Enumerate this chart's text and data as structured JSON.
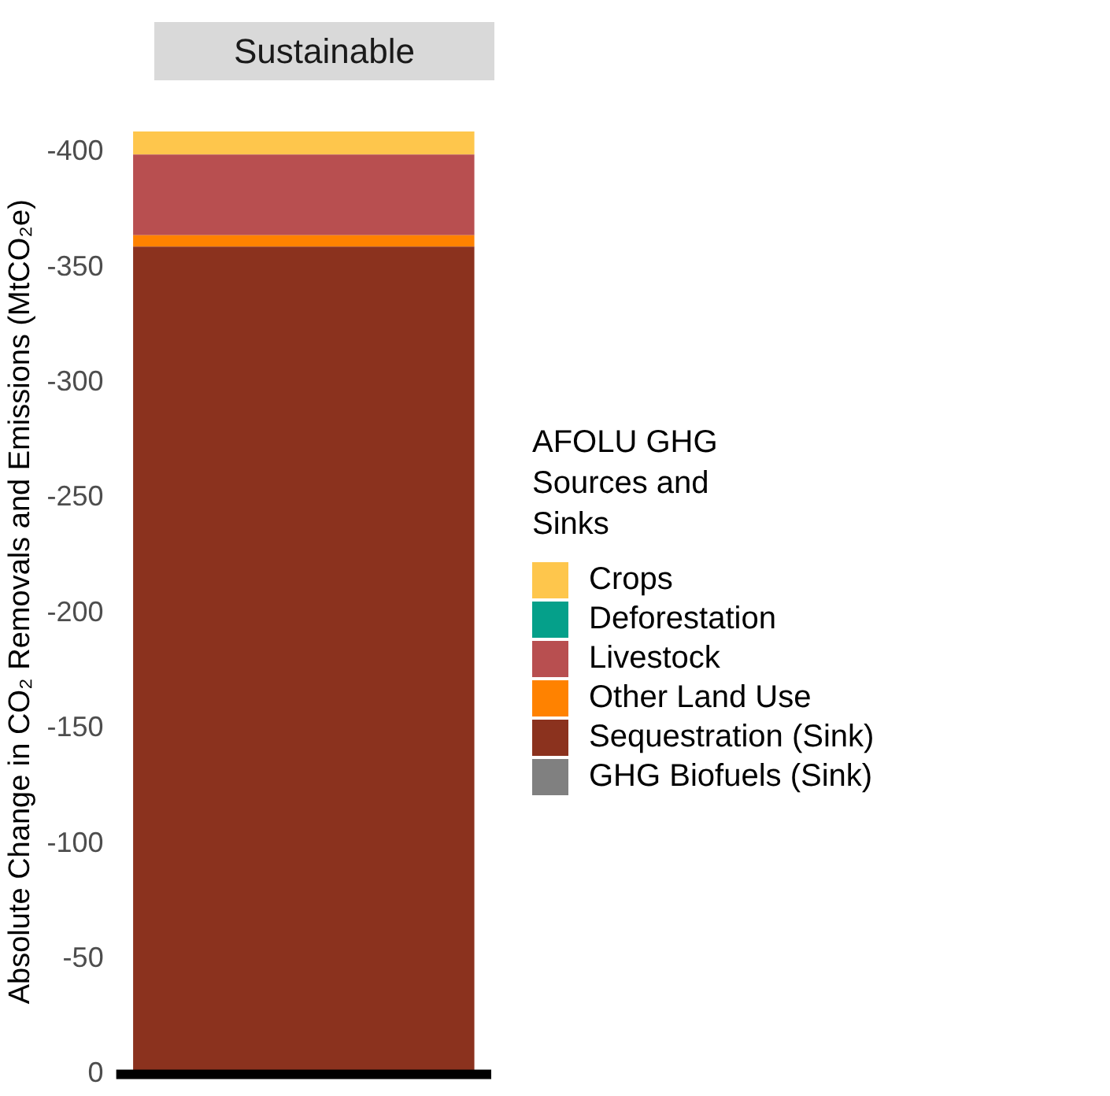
{
  "chart_data": {
    "type": "bar",
    "stacked": true,
    "categories": [
      "Sustainable"
    ],
    "ylabel": "Absolute Change in CO₂ Removals and Emissions (MtCO₂e)",
    "legend_title": "AFOLU GHG\nSources and\nSinks",
    "legend": "right",
    "grid": false,
    "ylim": [
      0,
      -410
    ],
    "yticks": [
      0,
      -50,
      -100,
      -150,
      -200,
      -250,
      -300,
      -350,
      -400
    ],
    "ref_lines": [
      {
        "axis": "y",
        "value": 0,
        "color": "#000000"
      }
    ],
    "series": [
      {
        "name": "GHG Biofuels (Sink)",
        "color": "#808080",
        "values": [
          0
        ]
      },
      {
        "name": "Sequestration (Sink)",
        "color": "#8b321e",
        "values": [
          -359
        ]
      },
      {
        "name": "Other Land Use",
        "color": "#ff8200",
        "values": [
          -5
        ]
      },
      {
        "name": "Livestock",
        "color": "#b84f50",
        "values": [
          -35
        ]
      },
      {
        "name": "Deforestation",
        "color": "#05a08a",
        "values": [
          0
        ]
      },
      {
        "name": "Crops",
        "color": "#fec64c",
        "values": [
          -10
        ]
      }
    ]
  }
}
